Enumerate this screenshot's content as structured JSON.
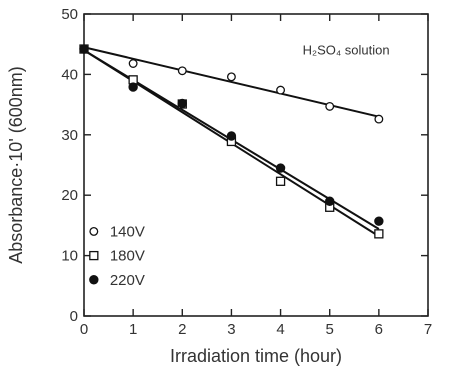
{
  "chart_data": {
    "type": "scatter",
    "xlabel": "Irradiation time (hour)",
    "ylabel": "Absorbance·10' (600nm)",
    "xlim": [
      0,
      7
    ],
    "ylim": [
      0,
      50
    ],
    "xticks": [
      "0",
      "1",
      "2",
      "3",
      "4",
      "5",
      "6",
      "7"
    ],
    "yticks": [
      "0",
      "10",
      "20",
      "30",
      "40",
      "50"
    ],
    "annotation": "H₂SO₄ solution",
    "legend_position": "bottom-left",
    "series": [
      {
        "name": "140V",
        "marker": "open-circle",
        "x": [
          0,
          1,
          2,
          3,
          4,
          5,
          6
        ],
        "y": [
          44.2,
          41.8,
          40.6,
          39.6,
          37.4,
          34.7,
          32.6
        ],
        "fit": [
          44.5,
          33.0
        ]
      },
      {
        "name": "180V",
        "marker": "open-square",
        "x": [
          0,
          1,
          2,
          3,
          4,
          5,
          6
        ],
        "y": [
          44.2,
          39.1,
          35.1,
          28.9,
          22.3,
          18.0,
          13.6
        ],
        "fit": [
          44.0,
          13.2
        ]
      },
      {
        "name": "220V",
        "marker": "filled-circle",
        "x": [
          0,
          1,
          2,
          3,
          4,
          5,
          6
        ],
        "y": [
          44.2,
          37.9,
          35.2,
          29.8,
          24.5,
          19.0,
          15.7
        ],
        "fit": [
          44.0,
          14.4
        ]
      }
    ]
  }
}
